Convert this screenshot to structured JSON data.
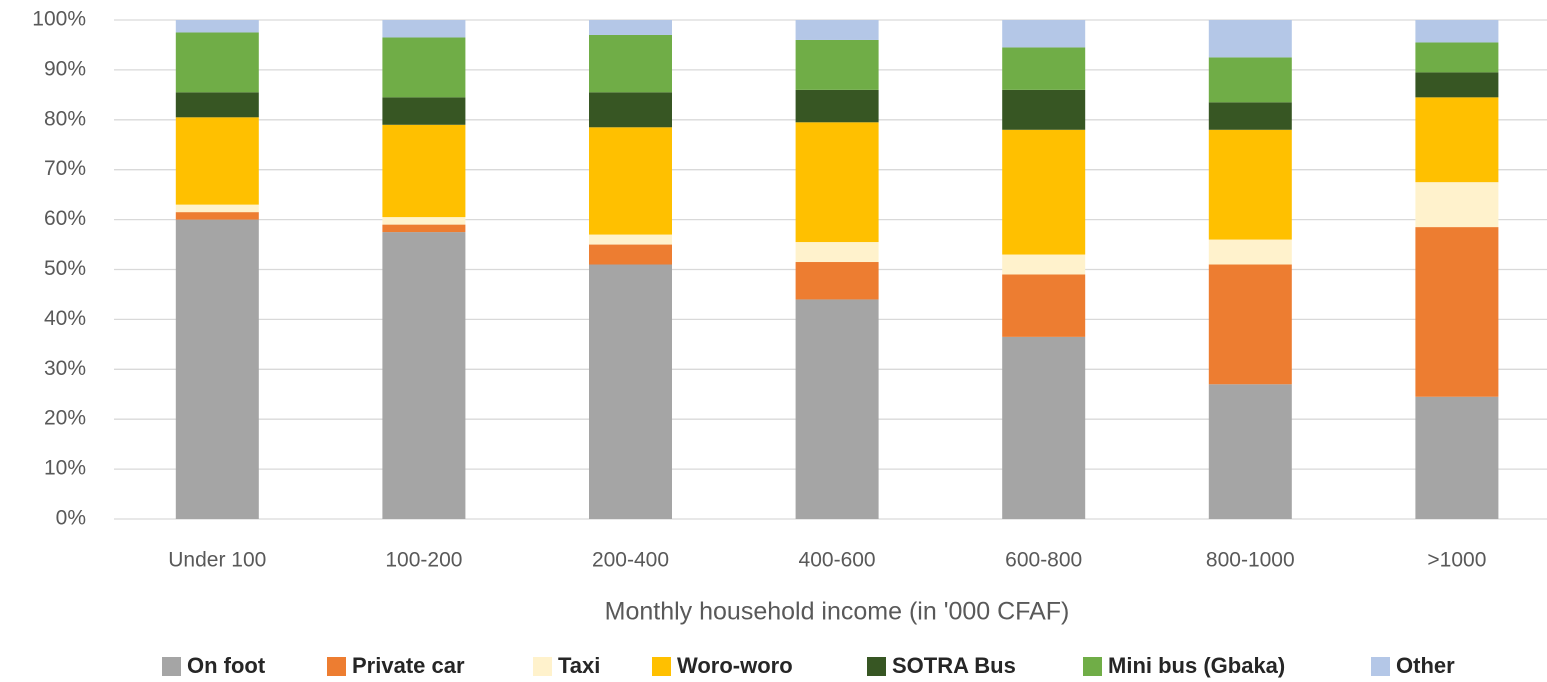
{
  "chart_data": {
    "type": "stacked_bar",
    "x_label": "Monthly household income (in '000 CFAF)",
    "categories": [
      "Under 100",
      "100-200",
      "200-400",
      "400-600",
      "600-800",
      "800-1000",
      ">1000"
    ],
    "series": [
      {
        "name": "On foot",
        "color": "#a5a5a5",
        "values": [
          60,
          57.5,
          51,
          44,
          36.5,
          27,
          24.5
        ]
      },
      {
        "name": "Private car",
        "color": "#ed7d31",
        "values": [
          1.5,
          1.5,
          4,
          7.5,
          12.5,
          24,
          34
        ]
      },
      {
        "name": "Taxi",
        "color": "#fff2cc",
        "values": [
          1.5,
          1.5,
          2,
          4,
          4,
          5,
          9
        ]
      },
      {
        "name": "Woro-woro",
        "color": "#ffc000",
        "values": [
          17.5,
          18.5,
          21.5,
          24,
          25,
          22,
          17
        ]
      },
      {
        "name": "SOTRA Bus",
        "color": "#375623",
        "values": [
          5,
          5.5,
          7,
          6.5,
          8,
          5.5,
          5
        ]
      },
      {
        "name": "Mini bus (Gbaka)",
        "color": "#70ad47",
        "values": [
          12,
          12,
          11.5,
          10,
          8.5,
          9,
          6
        ]
      },
      {
        "name": "Other",
        "color": "#b4c7e7",
        "values": [
          2.5,
          3.5,
          3,
          4,
          5.5,
          7.5,
          4.5
        ]
      }
    ],
    "ylim": [
      0,
      100
    ],
    "yticks": [
      {
        "value": 0,
        "label": "0%"
      },
      {
        "value": 10,
        "label": "10%"
      },
      {
        "value": 20,
        "label": "20%"
      },
      {
        "value": 30,
        "label": "30%"
      },
      {
        "value": 40,
        "label": "40%"
      },
      {
        "value": 50,
        "label": "50%"
      },
      {
        "value": 60,
        "label": "60%"
      },
      {
        "value": 70,
        "label": "70%"
      },
      {
        "value": 80,
        "label": "80%"
      },
      {
        "value": 90,
        "label": "90%"
      },
      {
        "value": 100,
        "label": "100%"
      }
    ],
    "grid": true,
    "legend": "bottom"
  }
}
